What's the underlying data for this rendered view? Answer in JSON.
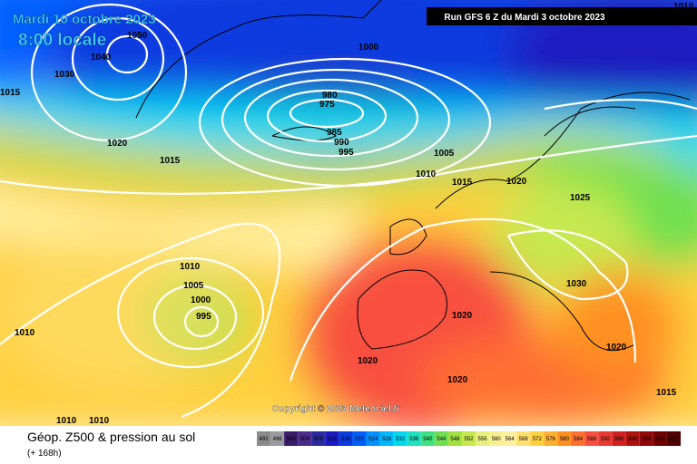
{
  "header": {
    "date": "Mardi 10 octobre 2023",
    "time": "8:00 locale",
    "run": "Run GFS 6 Z du Mardi 3 octobre 2023"
  },
  "isobar_labels": [
    "1050",
    "1040",
    "1030",
    "1000",
    "980",
    "975",
    "985",
    "990",
    "995",
    "1005",
    "1010",
    "1015",
    "1020",
    "1025",
    "1030",
    "1020",
    "1020",
    "1020",
    "1020",
    "1015",
    "1010",
    "1005",
    "1000",
    "995",
    "1010",
    "1015",
    "1020",
    "1015",
    "1010",
    "1010",
    "1010"
  ],
  "copyright": "Copyright © 2023 Meteociel.fr",
  "footer": {
    "title": "Géop. Z500 & pression au sol",
    "lead": "(+ 168h)"
  },
  "scale": {
    "labels": [
      "492",
      "496",
      "500",
      "504",
      "508",
      "512",
      "516",
      "520",
      "524",
      "528",
      "532",
      "536",
      "540",
      "544",
      "548",
      "552",
      "556",
      "560",
      "564",
      "568",
      "572",
      "576",
      "580",
      "584",
      "588",
      "592",
      "596",
      "600",
      "604",
      "608",
      "612"
    ],
    "colors": [
      "#8a8a8a",
      "#9a9aa0",
      "#3a1a6a",
      "#4a2a8a",
      "#2a2aa0",
      "#1a1ac0",
      "#0a3ae0",
      "#0060ff",
      "#0090ff",
      "#00b8ff",
      "#00d8f0",
      "#20e0c0",
      "#40e080",
      "#70e050",
      "#a0e040",
      "#c8e850",
      "#e8f080",
      "#f8f090",
      "#fff0a0",
      "#ffe070",
      "#ffd040",
      "#ffb030",
      "#ff9020",
      "#ff7030",
      "#f85040",
      "#e83a30",
      "#d02020",
      "#b01010",
      "#900808",
      "#700000",
      "#500000"
    ]
  }
}
